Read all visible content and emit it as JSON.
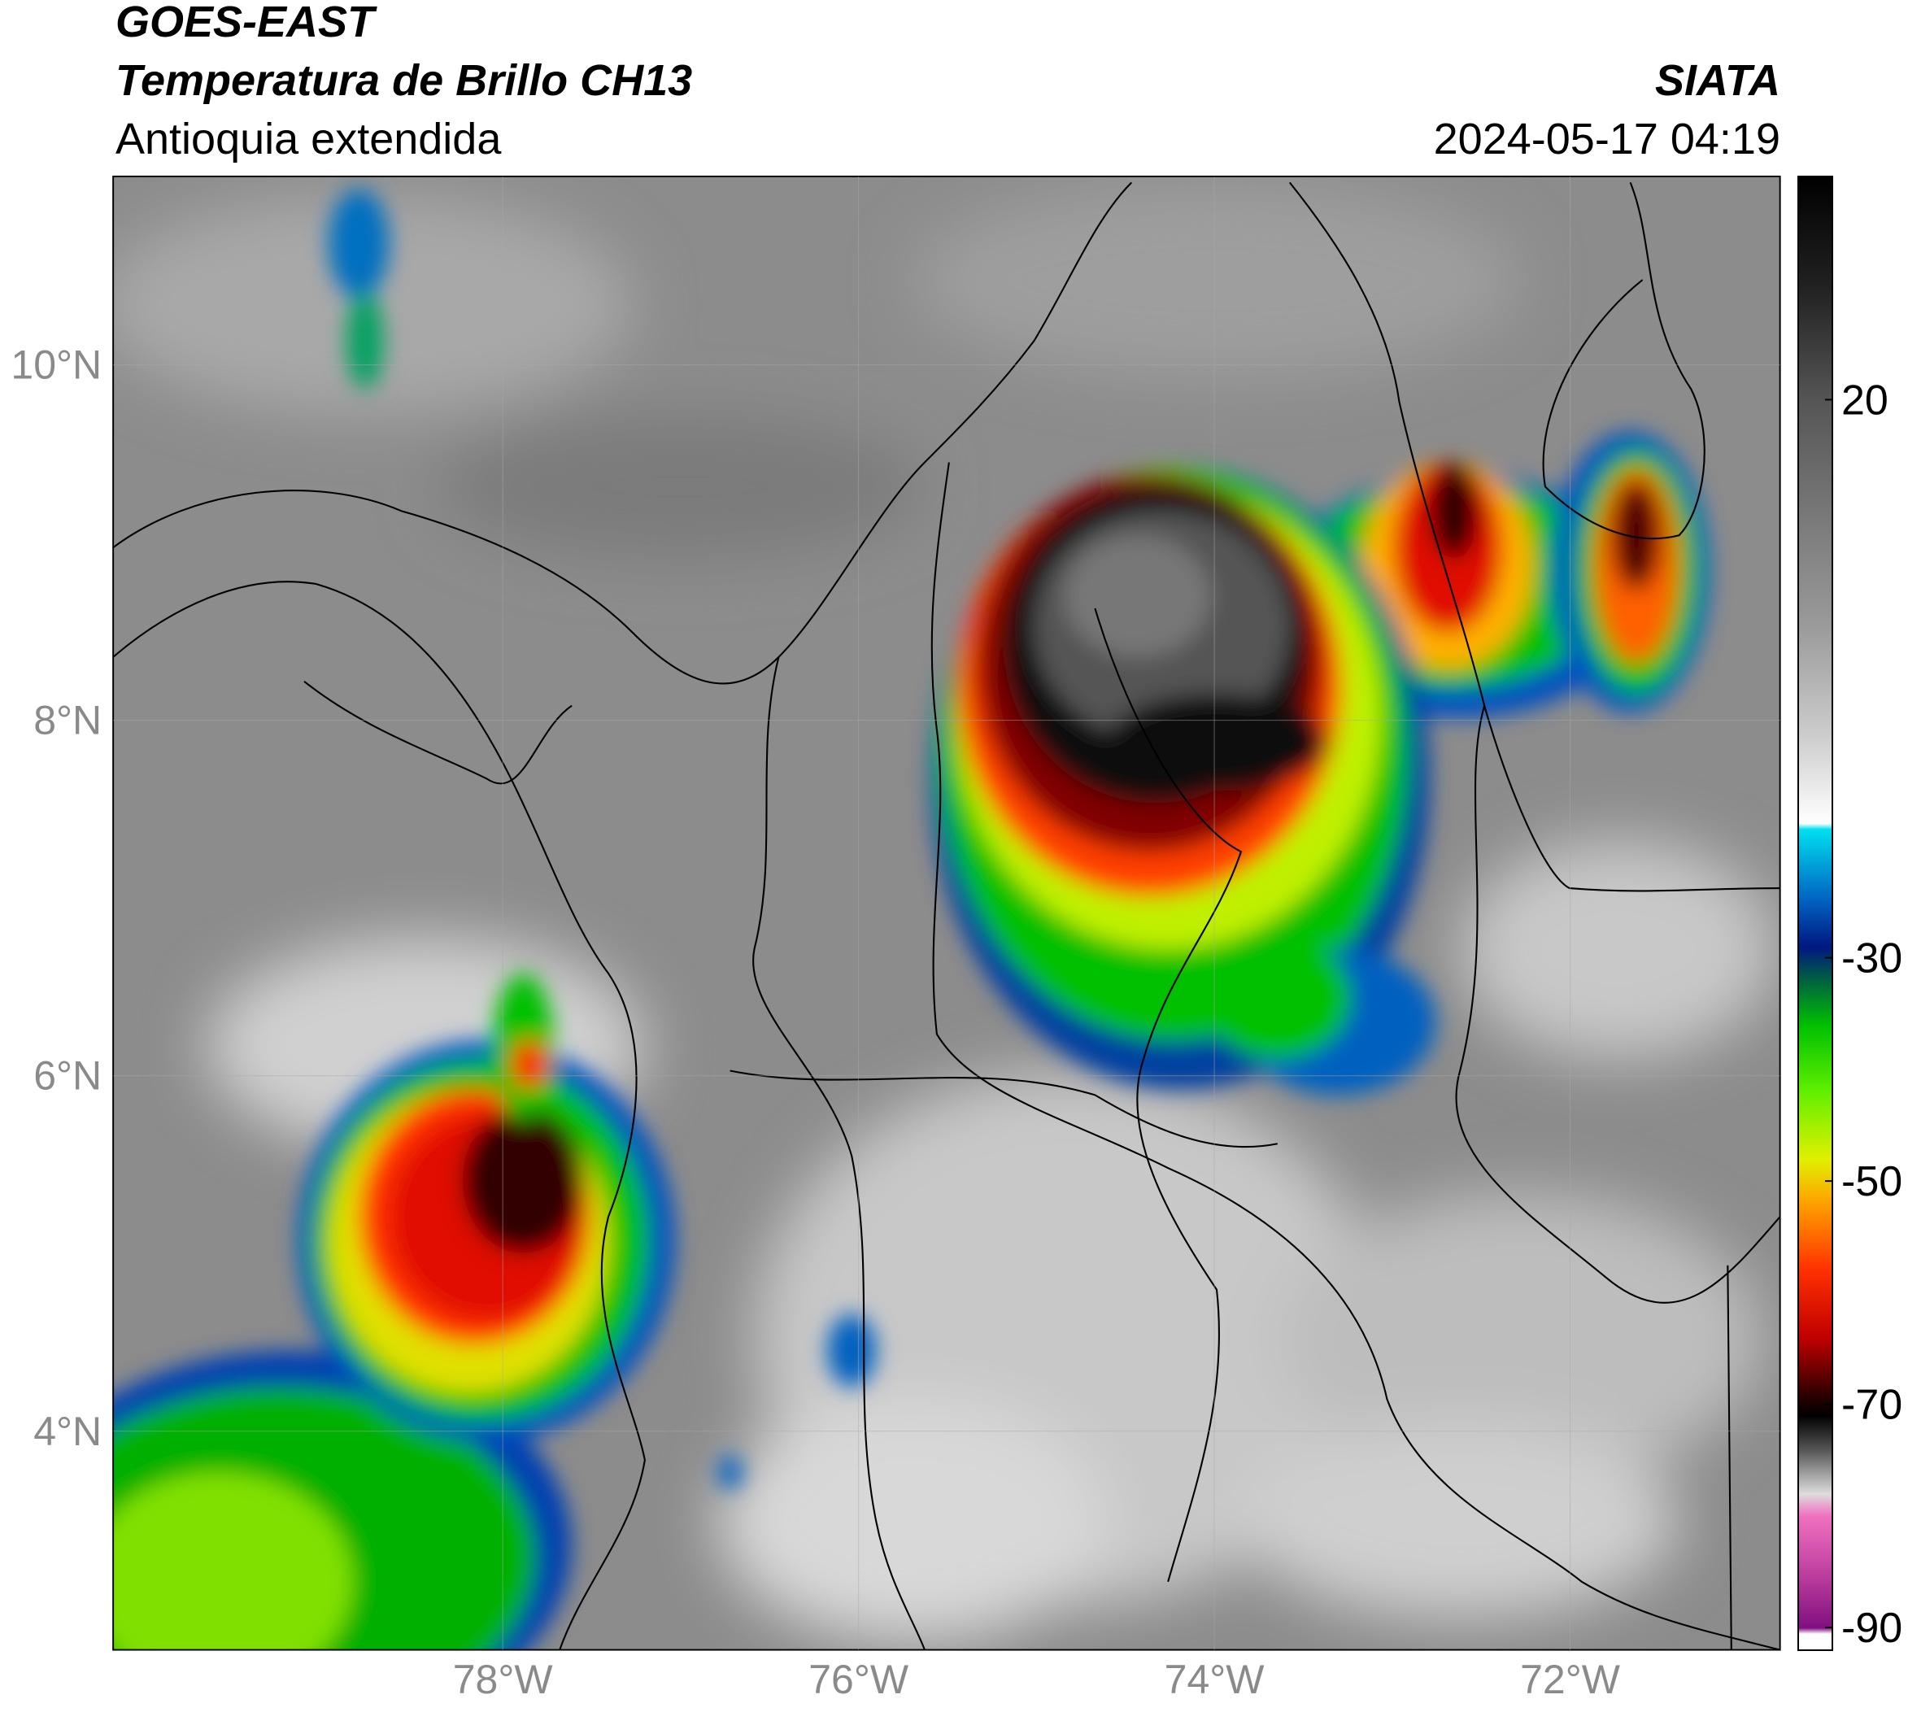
{
  "header": {
    "title": "GOES-EAST",
    "subtitle": "Temperatura de Brillo CH13",
    "region": "Antioquia extendida",
    "source": "SIATA",
    "timestamp": "2024-05-17 04:19"
  },
  "map": {
    "latlim": [
      2.77,
      11.06
    ],
    "lonlim": [
      -80.19,
      -70.82
    ],
    "grid": true,
    "latticks": [
      {
        "value": 10,
        "label": "10°N"
      },
      {
        "value": 8,
        "label": "8°N"
      },
      {
        "value": 6,
        "label": "6°N"
      },
      {
        "value": 4,
        "label": "4°N"
      }
    ],
    "lonticks": [
      {
        "value": -78,
        "label": "78°W"
      },
      {
        "value": -76,
        "label": "76°W"
      },
      {
        "value": -74,
        "label": "74°W"
      },
      {
        "value": -72,
        "label": "72°W"
      }
    ]
  },
  "colorbar": {
    "lim": [
      -92,
      40
    ],
    "ticks": [
      20,
      -30,
      -50,
      -70,
      -90
    ]
  }
}
